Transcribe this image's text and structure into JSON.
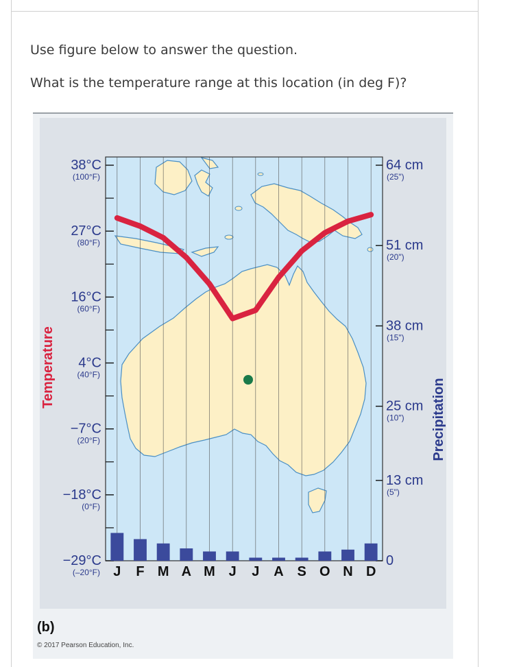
{
  "question": {
    "line1": "Use figure below to answer the question.",
    "line2": "What is the temperature range at this location (in deg F)?"
  },
  "figure": {
    "panel_label": "(b)",
    "copyright": "© 2017 Pearson Education, Inc.",
    "colors": {
      "ocean": "#cde7f7",
      "land": "#fdf0c6",
      "temperature_line": "#d92340",
      "precip_bar": "#3b4a9c",
      "location_dot": "#1a7a4a",
      "axis_text": "#2b3a8c",
      "panel_bg": "#eef1f4"
    },
    "location_marker": "station-dot"
  },
  "chart_data": {
    "type": "line",
    "left_axis_title": "Temperature",
    "right_axis_title": "Precipitation",
    "categories": [
      "J",
      "F",
      "M",
      "A",
      "M",
      "J",
      "J",
      "A",
      "S",
      "O",
      "N",
      "D"
    ],
    "temperature_ticks": [
      {
        "c": "38°C",
        "f": "(100°F)",
        "value_f": 100
      },
      {
        "c": "27°C",
        "f": "(80°F)",
        "value_f": 80
      },
      {
        "c": "16°C",
        "f": "(60°F)",
        "value_f": 60
      },
      {
        "c": "4°C",
        "f": "(40°F)",
        "value_f": 40
      },
      {
        "c": "−7°C",
        "f": "(20°F)",
        "value_f": 20
      },
      {
        "c": "−18°C",
        "f": "(0°F)",
        "value_f": 0
      },
      {
        "c": "−29°C",
        "f": "(–20°F)",
        "value_f": -20
      }
    ],
    "precip_ticks": [
      {
        "cm": "64 cm",
        "in": "(25\")",
        "value_cm": 64
      },
      {
        "cm": "51 cm",
        "in": "(20\")",
        "value_cm": 51
      },
      {
        "cm": "38 cm",
        "in": "(15\")",
        "value_cm": 38
      },
      {
        "cm": "25 cm",
        "in": "(10\")",
        "value_cm": 25
      },
      {
        "cm": "13 cm",
        "in": "(5\")",
        "value_cm": 13
      },
      {
        "cm": "0",
        "in": "",
        "value_cm": 0
      }
    ],
    "temperature_f": [
      84,
      81.5,
      78,
      72,
      64,
      53.5,
      56,
      66,
      74,
      79.5,
      83,
      85
    ],
    "precipitation_cm": [
      4.5,
      3.5,
      2.8,
      2.0,
      1.5,
      1.5,
      0.5,
      0.5,
      0.5,
      1.5,
      1.8,
      2.8
    ],
    "temperature_range_f": [
      -20,
      100
    ],
    "precipitation_range_cm": [
      0,
      64
    ]
  }
}
